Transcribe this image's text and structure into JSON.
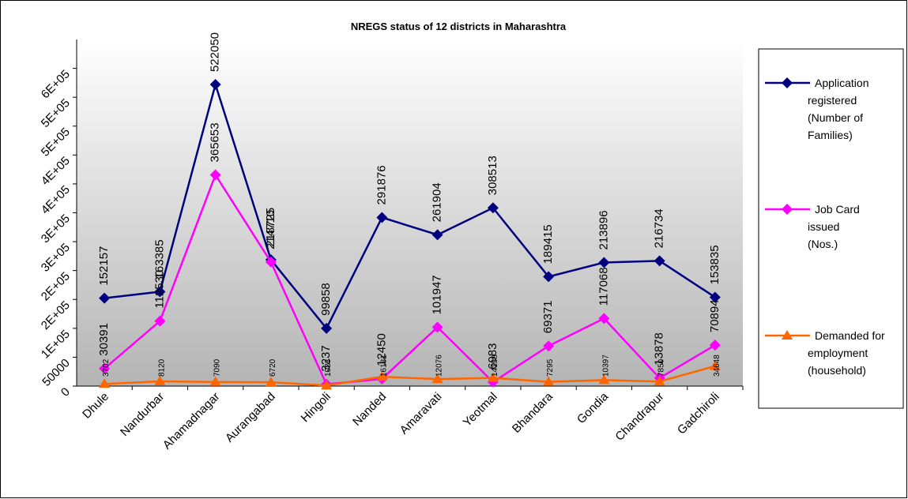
{
  "chart_data": {
    "type": "line",
    "title": "NREGS status of 12 districts in Maharashtra",
    "categories": [
      "Dhule",
      "Nandurbar",
      "Ahamadnagar",
      "Aurangabad",
      "Hingoli",
      "Nanded",
      "Amaravati",
      "Yeotmal",
      "Bhandara",
      "Gondia",
      "Chandrapur",
      "Gadchiroli"
    ],
    "series": [
      {
        "name": "Application registered (Number of Families)",
        "color": "#000080",
        "marker": "diamond",
        "values": [
          152157,
          163385,
          522050,
          218725,
          99858,
          291876,
          261904,
          308513,
          189415,
          213896,
          216734,
          153835
        ]
      },
      {
        "name": "Job Card issued (Nos.)",
        "color": "#ff00ff",
        "marker": "diamond",
        "values": [
          30391,
          112530,
          365653,
          214710,
          3237,
          12450,
          101947,
          6983,
          69371,
          117068,
          13878,
          70894
        ]
      },
      {
        "name": "Demanded for employment (household)",
        "color": "#ff6600",
        "marker": "triangle",
        "values": [
          3702,
          8120,
          7090,
          6720,
          1023,
          16181,
          12076,
          14158,
          7295,
          10397,
          7850,
          34648
        ]
      }
    ],
    "ylim": [
      0,
      600000
    ],
    "yticks": [
      0,
      50000,
      {
        "value": 100000,
        "label": "1E+05"
      },
      {
        "value": 150000,
        "label": "2E+05"
      },
      {
        "value": 200000,
        "label": "2E+05"
      },
      {
        "value": 250000,
        "label": "3E+05"
      },
      {
        "value": 300000,
        "label": "3E+05"
      },
      {
        "value": 350000,
        "label": "4E+05"
      },
      {
        "value": 400000,
        "label": "4E+05"
      },
      {
        "value": 450000,
        "label": "5E+05"
      },
      {
        "value": 500000,
        "label": "5E+05"
      },
      {
        "value": 550000,
        "label": "6E+05"
      }
    ],
    "legend": "right"
  }
}
